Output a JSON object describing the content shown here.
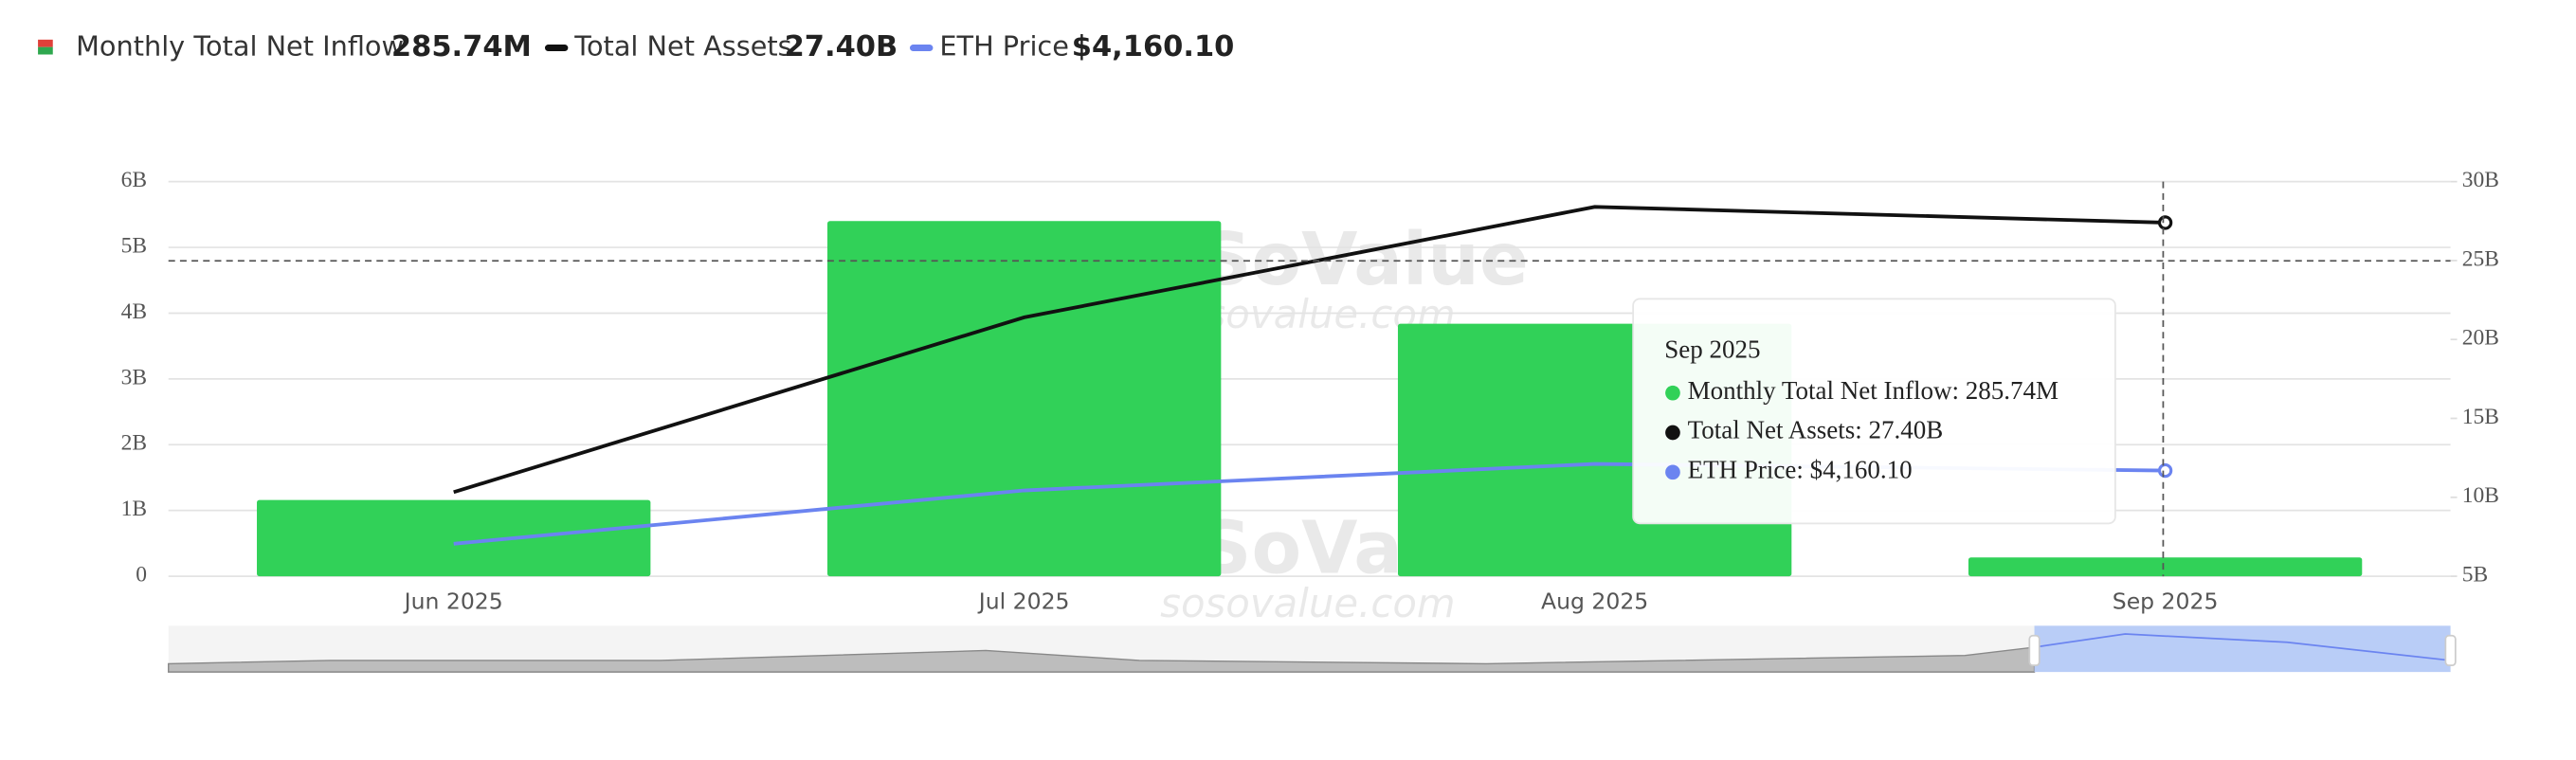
{
  "chart_data": {
    "type": "bar-line",
    "categories": [
      "Jun 2025",
      "Jul 2025",
      "Aug 2025",
      "Sep 2025"
    ],
    "series": [
      {
        "name": "Monthly Total Net Inflow",
        "type": "bar",
        "color": "#31d158",
        "axis": "y",
        "values": [
          1.16,
          5.4,
          3.84,
          0.28574
        ],
        "value_labels": [
          null,
          null,
          null,
          "285.74M"
        ]
      },
      {
        "name": "Total Net Assets",
        "type": "line",
        "color": "#111111",
        "axis": "y2",
        "values": [
          10.33,
          21.4,
          28.4,
          27.4
        ],
        "value_labels": [
          null,
          null,
          null,
          "27.40B"
        ]
      },
      {
        "name": "ETH Price",
        "type": "line",
        "color": "#6b84f0",
        "axis": "y3",
        "values": [
          2490,
          3707,
          4311,
          4160.1
        ],
        "value_labels": [
          null,
          null,
          null,
          "$4,160.10"
        ]
      }
    ],
    "ylim": [
      0,
      6
    ],
    "yticks": [
      0,
      {
        "value": 1,
        "label": "1B"
      },
      {
        "value": 2,
        "label": "2B"
      },
      {
        "value": 3,
        "label": "3B"
      },
      {
        "value": 4,
        "label": "4B"
      },
      {
        "value": 5,
        "label": "5B"
      },
      {
        "value": 6,
        "label": "6B"
      }
    ],
    "y2lim": [
      5,
      30
    ],
    "y2ticks": [
      {
        "value": 5,
        "label": "5B"
      },
      {
        "value": 10,
        "label": "10B"
      },
      {
        "value": 15,
        "label": "15B"
      },
      {
        "value": 20,
        "label": "20B"
      },
      {
        "value": 25,
        "label": "25B"
      },
      {
        "value": 30,
        "label": "30B"
      }
    ],
    "y3lim": [
      1750,
      10750
    ],
    "grid": true,
    "watermark": {
      "brand": "SoSoValue",
      "url": "sosovalue.com"
    },
    "tooltip": {
      "title": "Sep 2025",
      "items": [
        "Monthly Total Net Inflow: 285.74M",
        "Total Net Assets: 27.40B",
        "ETH Price: $4,160.10"
      ]
    }
  }
}
